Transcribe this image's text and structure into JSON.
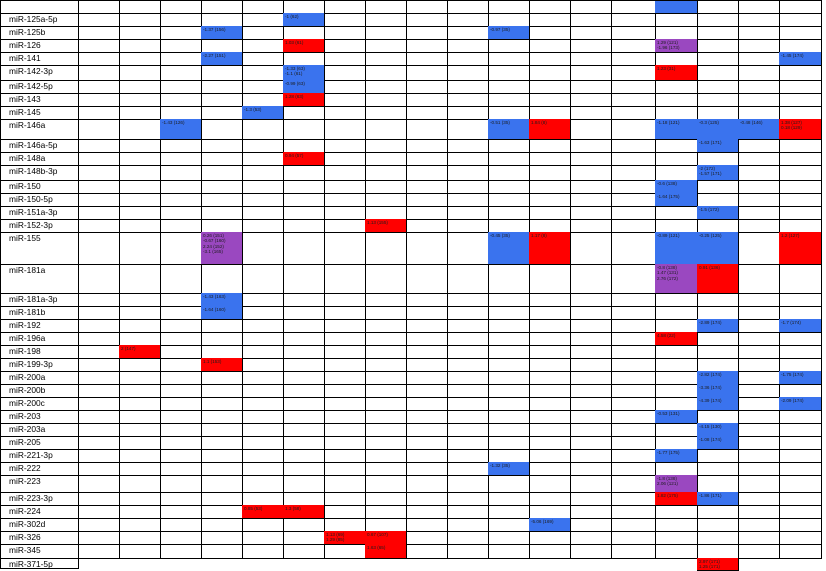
{
  "table": {
    "colors": {
      "red": "#ff0000",
      "blue": "#3a73ee",
      "purple": "#9a48c0"
    },
    "rows": [
      {
        "label": "",
        "cells": [
          {
            "col": 15,
            "color": "blue",
            "lines": []
          }
        ]
      },
      {
        "label": "miR-125a-5p",
        "cells": [
          {
            "col": 6,
            "color": "blue",
            "lines": [
              "-1 (62)"
            ]
          }
        ]
      },
      {
        "label": "miR-125b",
        "cells": [
          {
            "col": 4,
            "color": "blue",
            "lines": [
              "-1.37 (156)"
            ]
          },
          {
            "col": 11,
            "color": "blue",
            "lines": [
              "-0.97 (35)"
            ]
          }
        ]
      },
      {
        "label": "miR-126",
        "cells": [
          {
            "col": 6,
            "color": "red",
            "lines": [
              "1.03 (61)"
            ]
          },
          {
            "col": 15,
            "color": "purple",
            "lines": [
              "1.29 (121)",
              "-1.96 (173)"
            ]
          }
        ]
      },
      {
        "label": "miR-141",
        "cells": [
          {
            "col": 4,
            "color": "blue",
            "lines": [
              "-2.27 (151)"
            ]
          },
          {
            "col": 18,
            "color": "blue",
            "lines": [
              "-1.45 (174)"
            ]
          }
        ]
      },
      {
        "label": "miR-142-3p",
        "cells": [
          {
            "col": 6,
            "color": "blue",
            "lines": [
              "-1.33 (63)",
              "-1.1 (61)"
            ]
          },
          {
            "col": 15,
            "color": "red",
            "lines": [
              "1.23 (31)"
            ]
          }
        ]
      },
      {
        "label": "miR-142-5p",
        "cells": [
          {
            "col": 6,
            "color": "blue",
            "lines": [
              "-0.99 (63)"
            ]
          }
        ]
      },
      {
        "label": "miR-143",
        "cells": [
          {
            "col": 6,
            "color": "red",
            "lines": [
              "1.28 (63)"
            ]
          }
        ]
      },
      {
        "label": "miR-145",
        "cells": [
          {
            "col": 5,
            "color": "blue",
            "lines": [
              "-1.3 (53)"
            ]
          }
        ]
      },
      {
        "label": "miR-146a",
        "cells": [
          {
            "col": 3,
            "color": "blue",
            "lines": [
              "-1.43 (126)"
            ]
          },
          {
            "col": 11,
            "color": "blue",
            "lines": [
              "-0.51 (35)"
            ]
          },
          {
            "col": 12,
            "color": "red",
            "lines": [
              "1.84 (8)"
            ]
          },
          {
            "col": 15,
            "color": "blue",
            "lines": [
              "-1.18 (121)"
            ]
          },
          {
            "col": 16,
            "color": "blue",
            "lines": [
              "-0.3 (125)"
            ]
          },
          {
            "col": 17,
            "color": "blue",
            "lines": [
              "-0.48 (146)"
            ]
          },
          {
            "col": 18,
            "color": "red",
            "lines": [
              "1.38 (127)",
              "0.18 (129)"
            ]
          },
          {
            "col": 19,
            "color": "red",
            "lines": [
              "2.71 (119)"
            ]
          }
        ]
      },
      {
        "label": "miR-146a-5p",
        "cells": [
          {
            "col": 16,
            "color": "blue",
            "lines": [
              "-1.63 (171)"
            ]
          }
        ]
      },
      {
        "label": "miR-148a",
        "cells": [
          {
            "col": 6,
            "color": "red",
            "lines": [
              "0.94 (57)"
            ]
          }
        ]
      },
      {
        "label": "miR-148b-3p",
        "cells": [
          {
            "col": 16,
            "color": "blue",
            "lines": [
              "-2 (172)",
              "-1.57 (171)"
            ]
          }
        ]
      },
      {
        "label": "miR-150",
        "cells": [
          {
            "col": 15,
            "color": "blue",
            "lines": [
              "-0.6 (138)"
            ]
          }
        ]
      },
      {
        "label": "miR-150-5p",
        "cells": [
          {
            "col": 15,
            "color": "blue",
            "lines": [
              "-1.64 (175)"
            ]
          }
        ]
      },
      {
        "label": "miR-151a-3p",
        "cells": [
          {
            "col": 16,
            "color": "blue",
            "lines": [
              "-1.5 (172)"
            ]
          }
        ]
      },
      {
        "label": "miR-152-3p",
        "cells": [
          {
            "col": 8,
            "color": "red",
            "lines": [
              "1.13 (155)"
            ]
          }
        ]
      },
      {
        "label": "miR-155",
        "cells": [
          {
            "col": 4,
            "color": "purple",
            "lines": [
              "0.26 (151)",
              "-0.67 (160)",
              "2.24 (152)",
              "-3.1 (165)"
            ]
          },
          {
            "col": 11,
            "color": "blue",
            "lines": [
              "-0.45 (35)"
            ]
          },
          {
            "col": 12,
            "color": "red",
            "lines": [
              "1.17 (8)"
            ]
          },
          {
            "col": 15,
            "color": "blue",
            "lines": [
              "-0.89 (121)"
            ]
          },
          {
            "col": 16,
            "color": "blue",
            "lines": [
              "-0.25 (125)"
            ]
          },
          {
            "col": 18,
            "color": "red",
            "lines": [
              "1.2 (127)"
            ]
          }
        ]
      },
      {
        "label": "miR-181a",
        "cells": [
          {
            "col": 15,
            "color": "purple",
            "lines": [
              "-0.8 (138)",
              "1.47 (131)",
              "2.76 (172)"
            ]
          },
          {
            "col": 16,
            "color": "red",
            "lines": [
              "0.91 (136)"
            ]
          }
        ]
      },
      {
        "label": "miR-181a-3p",
        "cells": [
          {
            "col": 4,
            "color": "blue",
            "lines": [
              "-1.43 (163)"
            ]
          }
        ]
      },
      {
        "label": "miR-181b",
        "cells": [
          {
            "col": 4,
            "color": "blue",
            "lines": [
              "-1.64 (160)"
            ]
          }
        ]
      },
      {
        "label": "miR-192",
        "cells": [
          {
            "col": 16,
            "color": "blue",
            "lines": [
              "-2.89 (174)"
            ]
          },
          {
            "col": 18,
            "color": "blue",
            "lines": [
              "-1.7 (174)"
            ]
          }
        ]
      },
      {
        "label": "miR-196a",
        "cells": [
          {
            "col": 15,
            "color": "red",
            "lines": [
              "4.58 (22)"
            ]
          }
        ]
      },
      {
        "label": "miR-198",
        "cells": [
          {
            "col": 2,
            "color": "red",
            "lines": [
              "2 (147)"
            ]
          }
        ]
      },
      {
        "label": "miR-199-3p",
        "cells": [
          {
            "col": 4,
            "color": "red",
            "lines": [
              "1.1 (153)"
            ]
          }
        ]
      },
      {
        "label": "miR-200a",
        "cells": [
          {
            "col": 16,
            "color": "blue",
            "lines": [
              "-2.82 (174)"
            ]
          },
          {
            "col": 18,
            "color": "blue",
            "lines": [
              "-1.75 (174)"
            ]
          }
        ]
      },
      {
        "label": "miR-200b",
        "cells": [
          {
            "col": 16,
            "color": "blue",
            "lines": [
              "-3.36 (174)"
            ]
          }
        ]
      },
      {
        "label": "miR-200c",
        "cells": [
          {
            "col": 16,
            "color": "blue",
            "lines": [
              "-4.39 (174)"
            ]
          },
          {
            "col": 18,
            "color": "blue",
            "lines": [
              "-2.09 (174)"
            ]
          }
        ]
      },
      {
        "label": "miR-203",
        "cells": [
          {
            "col": 15,
            "color": "blue",
            "lines": [
              "-0.53 (131)"
            ]
          }
        ]
      },
      {
        "label": "miR-203a",
        "cells": [
          {
            "col": 16,
            "color": "blue",
            "lines": [
              "-4.15 (130)"
            ]
          }
        ]
      },
      {
        "label": "miR-205",
        "cells": [
          {
            "col": 16,
            "color": "blue",
            "lines": [
              "-1.08 (174)"
            ]
          }
        ]
      },
      {
        "label": "miR-221-3p",
        "cells": [
          {
            "col": 15,
            "color": "blue",
            "lines": [
              "-1.77 (175)"
            ]
          }
        ]
      },
      {
        "label": "miR-222",
        "cells": [
          {
            "col": 11,
            "color": "blue",
            "lines": [
              "-1.32 (35)"
            ]
          }
        ]
      },
      {
        "label": "miR-223",
        "cells": [
          {
            "col": 15,
            "color": "purple",
            "lines": [
              "-1.8 (138)",
              "2.06 (121)"
            ]
          }
        ]
      },
      {
        "label": "miR-223-3p",
        "cells": [
          {
            "col": 15,
            "color": "red",
            "lines": [
              "1.82 (175)"
            ]
          },
          {
            "col": 16,
            "color": "blue",
            "lines": [
              "-1.86 (171)"
            ]
          }
        ]
      },
      {
        "label": "miR-224",
        "cells": [
          {
            "col": 5,
            "color": "red",
            "lines": [
              "0.85 (53)"
            ]
          },
          {
            "col": 6,
            "color": "red",
            "lines": [
              "1.3 (58)"
            ]
          }
        ]
      },
      {
        "label": "miR-302d",
        "cells": [
          {
            "col": 12,
            "color": "blue",
            "lines": [
              "-5.06 (169)"
            ]
          }
        ]
      },
      {
        "label": "miR-326",
        "cells": [
          {
            "col": 7,
            "color": "red",
            "lines": [
              "1.13 (69)",
              "1.29 (85)"
            ]
          },
          {
            "col": 8,
            "color": "red",
            "lines": [
              "0.67 (107)"
            ]
          }
        ]
      },
      {
        "label": "miR-345",
        "cells": [
          {
            "col": 8,
            "color": "red",
            "lines": [
              "1.63 (65)"
            ]
          }
        ]
      },
      {
        "label": "miR-371-5p",
        "cells": [
          {
            "col": 16,
            "color": "red",
            "lines": [
              "2.97 (171)",
              "1.25 (171)"
            ]
          }
        ]
      }
    ]
  }
}
